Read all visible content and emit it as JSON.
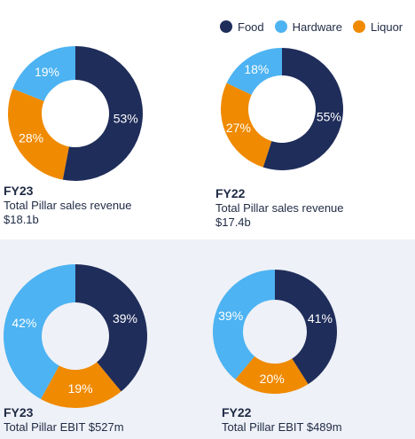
{
  "legend": [
    {
      "label": "Food",
      "color": "#1f2d5a"
    },
    {
      "label": "Hardware",
      "color": "#4db3f2"
    },
    {
      "label": "Liquor",
      "color": "#f08a00"
    }
  ],
  "colors": {
    "Food": "#1f2d5a",
    "Hardware": "#4db3f2",
    "Liquor": "#f08a00",
    "label_dark": "#ffffff",
    "label_light": "#ffffff"
  },
  "captions": {
    "fy23_revenue": {
      "year": "FY23",
      "line1": "Total Pillar sales revenue",
      "line2": "$18.1b"
    },
    "fy22_revenue": {
      "year": "FY22",
      "line1": "Total Pillar sales revenue",
      "line2": "$17.4b"
    },
    "fy23_ebit": {
      "year": "FY23",
      "line1": "Total Pillar EBIT $527m"
    },
    "fy22_ebit": {
      "year": "FY22",
      "line1": "Total Pillar EBIT $489m"
    }
  },
  "chart_data": [
    {
      "type": "pie",
      "title": "FY23 Total Pillar sales revenue",
      "categories": [
        "Food",
        "Liquor",
        "Hardware"
      ],
      "values": [
        53,
        28,
        19
      ],
      "labels": [
        "53%",
        "28%",
        "19%"
      ]
    },
    {
      "type": "pie",
      "title": "FY22 Total Pillar sales revenue",
      "categories": [
        "Food",
        "Liquor",
        "Hardware"
      ],
      "values": [
        55,
        27,
        18
      ],
      "labels": [
        "55%",
        "27%",
        "18%"
      ]
    },
    {
      "type": "pie",
      "title": "FY23 Total Pillar EBIT",
      "categories": [
        "Food",
        "Liquor",
        "Hardware"
      ],
      "values": [
        39,
        19,
        42
      ],
      "labels": [
        "39%",
        "19%",
        "42%"
      ]
    },
    {
      "type": "pie",
      "title": "FY22 Total Pillar EBIT",
      "categories": [
        "Food",
        "Liquor",
        "Hardware"
      ],
      "values": [
        41,
        20,
        39
      ],
      "labels": [
        "41%",
        "20%",
        "39%"
      ]
    }
  ]
}
